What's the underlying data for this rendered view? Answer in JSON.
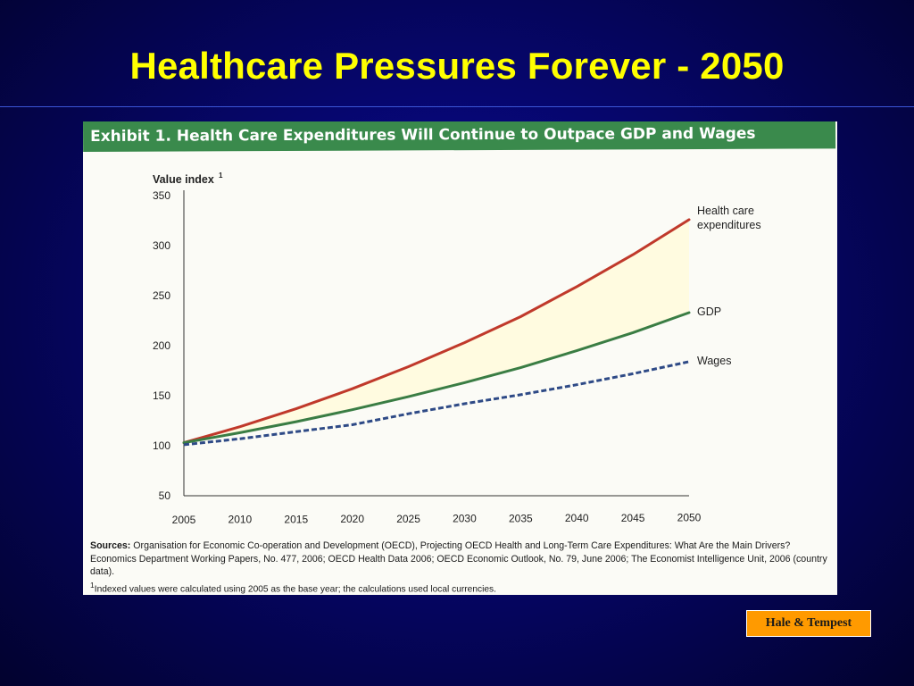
{
  "slide": {
    "title": "Healthcare Pressures Forever - 2050",
    "attribution": "Hale & Tempest"
  },
  "exhibit": {
    "header": "Exhibit 1. Health Care Expenditures Will Continue to Outpace GDP and Wages",
    "sources_label": "Sources:",
    "sources_text": "Organisation for Economic Co-operation and Development (OECD), Projecting OECD Health and Long-Term Care Expenditures: What Are the Main Drivers? Economics Department Working Papers, No. 477, 2006; OECD Health Data 2006; OECD Economic Outlook, No. 79, June 2006; The Economist Intelligence Unit, 2006 (country data).",
    "footnote_marker": "1",
    "footnote": "Indexed values were calculated using 2005 as the base year; the calculations used local currencies."
  },
  "colors": {
    "health": "#c0392b",
    "gdp": "#3a7d44",
    "wages": "#2e4a86",
    "gap_fill": "#fffbe0",
    "header_bg": "#3a8a4c",
    "title": "#ffff00"
  },
  "chart_data": {
    "type": "line",
    "ylabel": "Value index",
    "ylabel_superscript": "1",
    "xlabel": "",
    "x": [
      2005,
      2010,
      2015,
      2020,
      2025,
      2030,
      2035,
      2040,
      2045,
      2050
    ],
    "xticks": [
      "2005",
      "2010",
      "2015",
      "2020",
      "2025",
      "2030",
      "2035",
      "2040",
      "2045",
      "2050"
    ],
    "yticks": [
      "50",
      "100",
      "150",
      "200",
      "250",
      "300",
      "350"
    ],
    "ylim": [
      50,
      350
    ],
    "xlim": [
      2005,
      2050
    ],
    "grid": false,
    "series": [
      {
        "name": "Health care expenditures",
        "label_lines": [
          "Health care",
          "expenditures"
        ],
        "style": "solid",
        "color": "#c0392b",
        "values": [
          103,
          119,
          137,
          157,
          179,
          203,
          229,
          259,
          291,
          326
        ]
      },
      {
        "name": "GDP",
        "label_lines": [
          "GDP"
        ],
        "style": "solid",
        "color": "#3a7d44",
        "values": [
          103,
          113,
          124,
          136,
          149,
          163,
          178,
          195,
          213,
          233
        ]
      },
      {
        "name": "Wages",
        "label_lines": [
          "Wages"
        ],
        "style": "dashed",
        "color": "#2e4a86",
        "values": [
          101,
          107,
          114,
          121,
          132,
          142,
          151,
          161,
          172,
          184
        ]
      }
    ],
    "shaded_region": "between Health care expenditures and GDP"
  }
}
